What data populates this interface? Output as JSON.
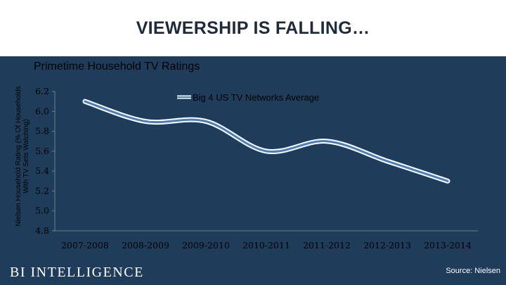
{
  "slide": {
    "title": "VIEWERSHIP IS FALLING…",
    "logo": "BI INTELLIGENCE",
    "source": "Source: Nielsen",
    "background": "#1f3c5a",
    "header_background": "#ffffff"
  },
  "chart_data": {
    "type": "line",
    "title": "Primetime Household TV Ratings",
    "ylabel": "Nielsen Household Rating (% Of Households With TV Sets Watching)",
    "xlabel": "",
    "categories": [
      "2007-2008",
      "2008-2009",
      "2009-2010",
      "2010-2011",
      "2011-2012",
      "2012-2013",
      "2013-2014"
    ],
    "series": [
      {
        "name": "Big 4 US TV Networks Average",
        "values": [
          6.1,
          5.9,
          5.9,
          5.6,
          5.7,
          5.5,
          5.3
        ],
        "color": "#4a7fbf"
      }
    ],
    "ylim": [
      4.8,
      6.2
    ],
    "yticks": [
      "6.2",
      "6.0",
      "5.8",
      "5.6",
      "5.4",
      "5.2",
      "5.0",
      "4.8"
    ],
    "grid": false,
    "legend_position": "top-center"
  }
}
